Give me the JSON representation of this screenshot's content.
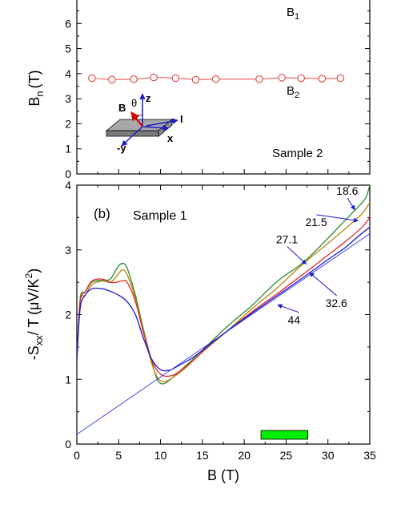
{
  "chart_data": [
    {
      "type": "line",
      "panel_label": "",
      "annotation": "Sample 2",
      "xlabel": "",
      "ylabel": "B",
      "ylabel_sub": "n",
      "ylabel_unit": "(T)",
      "xlim": [
        0,
        35
      ],
      "ylim": [
        0,
        7
      ],
      "y_ticks": [
        "0",
        "1",
        "2",
        "3",
        "4",
        "5",
        "6"
      ],
      "grid": false,
      "series": [
        {
          "name": "B2",
          "name_main": "B",
          "name_sub": "2",
          "color": "#e8403a",
          "marker": "open-circle",
          "x": [
            1.8,
            4.2,
            6.8,
            9.2,
            11.8,
            14.2,
            16.6,
            21.8,
            24.5,
            26.8,
            29.3,
            31.5
          ],
          "y": [
            3.82,
            3.76,
            3.78,
            3.85,
            3.82,
            3.76,
            3.78,
            3.78,
            3.84,
            3.82,
            3.8,
            3.82
          ]
        }
      ],
      "labels": [
        {
          "id": "B1",
          "main": "B",
          "sub": "1"
        },
        {
          "id": "B2",
          "main": "B",
          "sub": "2"
        }
      ],
      "inset": {
        "B": "B",
        "theta": "θ",
        "z": "z",
        "I": "I",
        "x": "x",
        "y": "-y"
      }
    },
    {
      "type": "line",
      "panel_label": "(b)",
      "annotation": "Sample 1",
      "xlabel": "B (T)",
      "ylabel_parts": {
        "pre": "-S",
        "sub": "xx",
        "mid": "/ T (μV/K",
        "sup": "2",
        "post": ")"
      },
      "xlim": [
        0,
        35
      ],
      "ylim": [
        0,
        4
      ],
      "x_ticks": [
        "0",
        "5",
        "10",
        "15",
        "20",
        "25",
        "30",
        "35"
      ],
      "y_ticks": [
        "0",
        "1",
        "2",
        "3",
        "4"
      ],
      "grid": false,
      "legend_bar": {
        "color": "#00ee00",
        "x_range": [
          22,
          27.6
        ]
      },
      "series": [
        {
          "name": "18.6",
          "color": "#2e8b2e",
          "points": [
            [
              0,
              1.3
            ],
            [
              0.4,
              2.25
            ],
            [
              1,
              2.35
            ],
            [
              1.8,
              2.5
            ],
            [
              3,
              2.53
            ],
            [
              4,
              2.55
            ],
            [
              4.8,
              2.72
            ],
            [
              5.4,
              2.79
            ],
            [
              6,
              2.72
            ],
            [
              7,
              2.3
            ],
            [
              8,
              1.75
            ],
            [
              9,
              1.25
            ],
            [
              9.6,
              1.0
            ],
            [
              10.2,
              0.93
            ],
            [
              11,
              0.98
            ],
            [
              12.5,
              1.15
            ],
            [
              15,
              1.45
            ],
            [
              18,
              1.82
            ],
            [
              21,
              2.15
            ],
            [
              24,
              2.52
            ],
            [
              27,
              2.8
            ],
            [
              30,
              3.18
            ],
            [
              32,
              3.45
            ],
            [
              33.5,
              3.65
            ],
            [
              34.5,
              3.8
            ],
            [
              35,
              4.0
            ]
          ]
        },
        {
          "name": "21.5",
          "color": "#b8860b",
          "points": [
            [
              0,
              1.3
            ],
            [
              0.4,
              2.2
            ],
            [
              1,
              2.3
            ],
            [
              1.8,
              2.46
            ],
            [
              3,
              2.52
            ],
            [
              4,
              2.5
            ],
            [
              4.8,
              2.6
            ],
            [
              5.4,
              2.69
            ],
            [
              6,
              2.62
            ],
            [
              7,
              2.25
            ],
            [
              8,
              1.72
            ],
            [
              9,
              1.22
            ],
            [
              9.8,
              1.0
            ],
            [
              10.6,
              0.97
            ],
            [
              11.5,
              1.03
            ],
            [
              13,
              1.18
            ],
            [
              15,
              1.42
            ],
            [
              18,
              1.75
            ],
            [
              21,
              2.1
            ],
            [
              24,
              2.42
            ],
            [
              27,
              2.78
            ],
            [
              30,
              3.1
            ],
            [
              32,
              3.32
            ],
            [
              34,
              3.55
            ],
            [
              35,
              3.73
            ]
          ]
        },
        {
          "name": "27.1",
          "color": "#e32b2b",
          "points": [
            [
              0,
              1.3
            ],
            [
              0.4,
              2.2
            ],
            [
              1,
              2.35
            ],
            [
              1.8,
              2.52
            ],
            [
              3,
              2.55
            ],
            [
              4,
              2.5
            ],
            [
              4.8,
              2.5
            ],
            [
              5.4,
              2.52
            ],
            [
              6,
              2.5
            ],
            [
              7,
              2.2
            ],
            [
              8,
              1.7
            ],
            [
              9,
              1.28
            ],
            [
              10,
              1.08
            ],
            [
              11,
              1.05
            ],
            [
              12,
              1.1
            ],
            [
              14,
              1.3
            ],
            [
              16,
              1.55
            ],
            [
              18,
              1.75
            ],
            [
              21,
              2.05
            ],
            [
              24,
              2.33
            ],
            [
              27,
              2.62
            ],
            [
              30,
              2.92
            ],
            [
              32,
              3.12
            ],
            [
              34,
              3.34
            ],
            [
              35,
              3.5
            ]
          ]
        },
        {
          "name": "32.6",
          "color": "#1a1acc",
          "points": [
            [
              0,
              1.3
            ],
            [
              0.4,
              2.1
            ],
            [
              1,
              2.3
            ],
            [
              1.8,
              2.4
            ],
            [
              3,
              2.4
            ],
            [
              4,
              2.36
            ],
            [
              5,
              2.3
            ],
            [
              6,
              2.2
            ],
            [
              7,
              2.0
            ],
            [
              8,
              1.62
            ],
            [
              9,
              1.3
            ],
            [
              10,
              1.15
            ],
            [
              11,
              1.14
            ],
            [
              12,
              1.2
            ],
            [
              14,
              1.35
            ],
            [
              16,
              1.55
            ],
            [
              18,
              1.75
            ],
            [
              21,
              2.03
            ],
            [
              24,
              2.3
            ],
            [
              27,
              2.57
            ],
            [
              30,
              2.85
            ],
            [
              32,
              3.03
            ],
            [
              34,
              3.25
            ],
            [
              35,
              3.35
            ]
          ]
        },
        {
          "name": "44",
          "color": "#3333ee",
          "points": [
            [
              0,
              0.15
            ],
            [
              35,
              3.25
            ]
          ]
        }
      ],
      "curve_labels": [
        {
          "text": "18.6",
          "at": [
            31.0,
            3.85
          ]
        },
        {
          "text": "21.5",
          "at": [
            27.3,
            3.37
          ]
        },
        {
          "text": "27.1",
          "at": [
            23.8,
            3.1
          ]
        },
        {
          "text": "32.6",
          "at": [
            29.7,
            2.12
          ]
        },
        {
          "text": "44",
          "at": [
            25.2,
            1.86
          ]
        }
      ]
    }
  ]
}
